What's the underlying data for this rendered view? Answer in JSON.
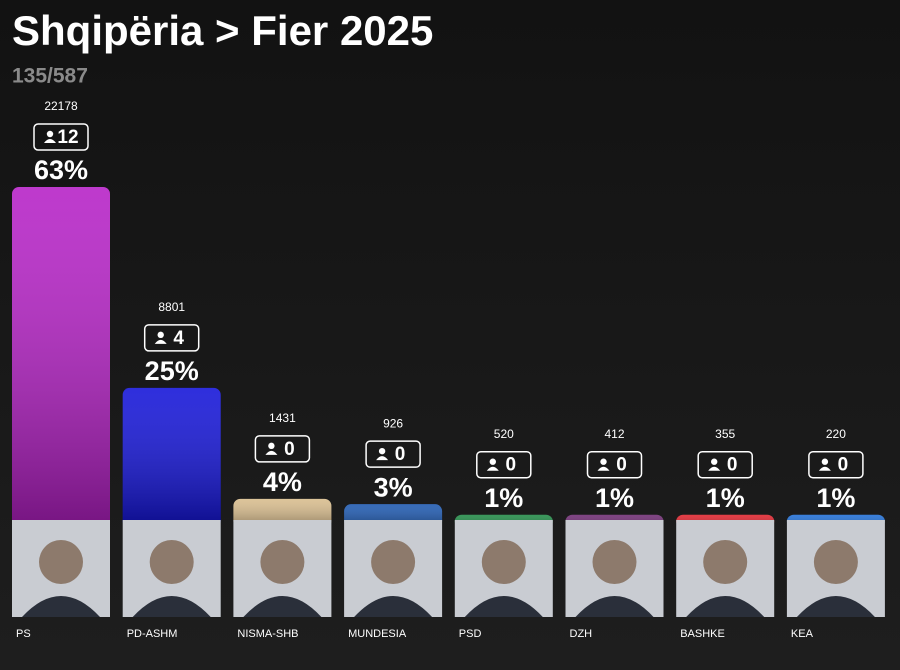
{
  "chart_data": {
    "type": "bar",
    "title": "Shqipëria > Fier 2025",
    "subtitle": "135/587",
    "categories": [
      "PS",
      "PD-ASHM",
      "NISMA-SHB",
      "MUNDESIA",
      "PSD",
      "DZH",
      "BASHKE",
      "KEA"
    ],
    "values": [
      63,
      25,
      4,
      3,
      1,
      1,
      1,
      1
    ],
    "value_labels": [
      "63%",
      "25%",
      "4%",
      "3%",
      "1%",
      "1%",
      "1%",
      "1%"
    ],
    "votes": [
      22178,
      8801,
      1431,
      926,
      520,
      412,
      355,
      220
    ],
    "seats": [
      12,
      4,
      0,
      0,
      0,
      0,
      0,
      0
    ],
    "colors": [
      "#b51fc6",
      "#1212d8",
      "#d8bc8c",
      "#1c58b0",
      "#1f8a45",
      "#6e2a72",
      "#e0222c",
      "#1e6ed6"
    ]
  }
}
